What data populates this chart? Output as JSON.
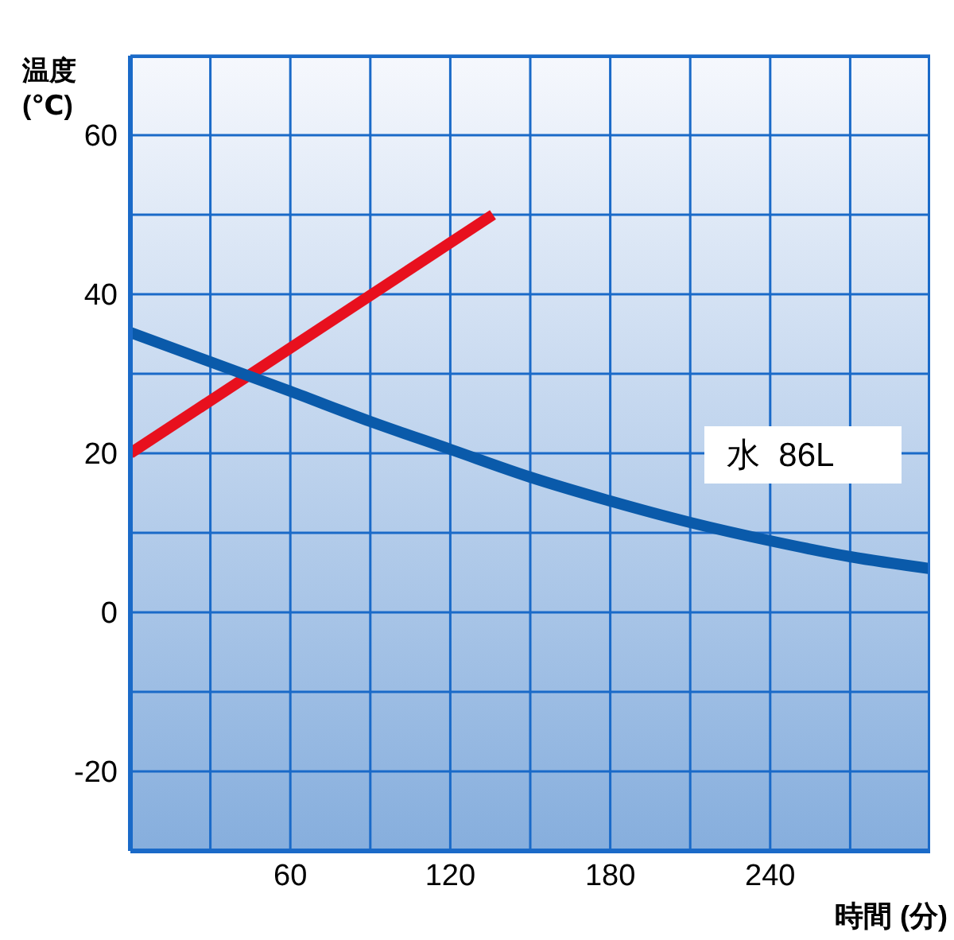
{
  "chart_data": {
    "type": "line",
    "xlabel": "時間 (分)",
    "ylabel": "温度\n(℃)",
    "series": [
      {
        "color": "#e8101e",
        "x": [
          0,
          136
        ],
        "values": [
          20,
          50
        ]
      },
      {
        "name": "水  86L",
        "color": "#0a5aaa",
        "x": [
          0,
          30,
          60,
          90,
          120,
          150,
          180,
          210,
          240,
          270,
          300
        ],
        "values": [
          35.2,
          31.5,
          27.8,
          24,
          20.5,
          17,
          14,
          11.3,
          9,
          7,
          5.5
        ]
      }
    ],
    "xlim": [
      0,
      300
    ],
    "xticks": [
      {
        "value": 30,
        "label": null
      },
      60,
      {
        "value": 90,
        "label": null
      },
      120,
      {
        "value": 150,
        "label": null
      },
      180,
      {
        "value": 210,
        "label": null
      },
      240,
      {
        "value": 270,
        "label": null
      }
    ],
    "ylim": [
      -30,
      70
    ],
    "yticks": [
      {
        "value": -30,
        "label": null
      },
      -20,
      {
        "value": -10,
        "label": null
      },
      0,
      {
        "value": 10,
        "label": null
      },
      20,
      {
        "value": 30,
        "label": null
      },
      40,
      {
        "value": 50,
        "label": null
      },
      60,
      {
        "value": 70,
        "label": null
      }
    ],
    "grid": true,
    "marker": "none",
    "line_style": "solid"
  }
}
